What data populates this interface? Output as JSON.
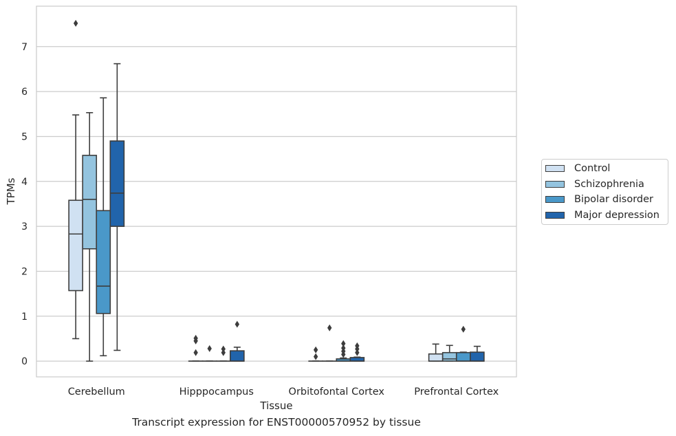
{
  "chart_data": {
    "type": "box",
    "xlabel": "Tissue",
    "ylabel": "TPMs",
    "caption": "Transcript expression for ENST00000570952 by tissue",
    "categories": [
      "Cerebellum",
      "Hipppocampus",
      "Orbitofontal Cortex",
      "Prefrontal Cortex"
    ],
    "ylim": [
      -0.35,
      7.9
    ],
    "yticks": [
      "0",
      "1",
      "2",
      "3",
      "4",
      "5",
      "6",
      "7"
    ],
    "grid": "horizontal",
    "legend_position": "right",
    "colors": [
      "#d0e1f2",
      "#94c4df",
      "#4a98c9",
      "#2164ab"
    ],
    "series": [
      {
        "name": "Control",
        "boxes": [
          {
            "whisker_low": 0.5,
            "q1": 1.57,
            "median": 2.83,
            "q3": 3.58,
            "whisker_high": 5.48,
            "outliers": [
              7.52
            ]
          },
          {
            "whisker_low": 0.0,
            "q1": 0.0,
            "median": 0.0,
            "q3": 0.0,
            "whisker_high": 0.0,
            "outliers": [
              0.19,
              0.45,
              0.51
            ]
          },
          {
            "whisker_low": 0.0,
            "q1": 0.0,
            "median": 0.0,
            "q3": 0.0,
            "whisker_high": 0.0,
            "outliers": [
              0.1,
              0.25
            ]
          },
          {
            "whisker_low": 0.0,
            "q1": 0.0,
            "median": 0.0,
            "q3": 0.16,
            "whisker_high": 0.38,
            "outliers": []
          }
        ]
      },
      {
        "name": "Schizophrenia",
        "boxes": [
          {
            "whisker_low": 0.0,
            "q1": 2.5,
            "median": 3.6,
            "q3": 4.58,
            "whisker_high": 5.53,
            "outliers": []
          },
          {
            "whisker_low": 0.0,
            "q1": 0.0,
            "median": 0.0,
            "q3": 0.0,
            "whisker_high": 0.0,
            "outliers": [
              0.28
            ]
          },
          {
            "whisker_low": 0.0,
            "q1": 0.0,
            "median": 0.0,
            "q3": 0.0,
            "whisker_high": 0.0,
            "outliers": [
              0.74
            ]
          },
          {
            "whisker_low": 0.0,
            "q1": 0.0,
            "median": 0.05,
            "q3": 0.19,
            "whisker_high": 0.35,
            "outliers": []
          }
        ]
      },
      {
        "name": "Bipolar disorder",
        "boxes": [
          {
            "whisker_low": 0.12,
            "q1": 1.06,
            "median": 1.67,
            "q3": 3.35,
            "whisker_high": 5.86,
            "outliers": []
          },
          {
            "whisker_low": 0.0,
            "q1": 0.0,
            "median": 0.0,
            "q3": 0.0,
            "whisker_high": 0.0,
            "outliers": [
              0.19,
              0.27
            ]
          },
          {
            "whisker_low": 0.0,
            "q1": 0.0,
            "median": 0.0,
            "q3": 0.05,
            "whisker_high": 0.07,
            "outliers": [
              0.15,
              0.22,
              0.29,
              0.39
            ]
          },
          {
            "whisker_low": 0.0,
            "q1": 0.0,
            "median": 0.0,
            "q3": 0.19,
            "whisker_high": 0.2,
            "outliers": [
              0.71
            ]
          }
        ]
      },
      {
        "name": "Major depression",
        "boxes": [
          {
            "whisker_low": 0.24,
            "q1": 3.0,
            "median": 3.74,
            "q3": 4.9,
            "whisker_high": 6.62,
            "outliers": []
          },
          {
            "whisker_low": 0.0,
            "q1": 0.0,
            "median": 0.0,
            "q3": 0.23,
            "whisker_high": 0.31,
            "outliers": [
              0.82
            ]
          },
          {
            "whisker_low": 0.0,
            "q1": 0.0,
            "median": 0.0,
            "q3": 0.08,
            "whisker_high": 0.09,
            "outliers": [
              0.19,
              0.27,
              0.34
            ]
          },
          {
            "whisker_low": 0.0,
            "q1": 0.0,
            "median": 0.0,
            "q3": 0.2,
            "whisker_high": 0.33,
            "outliers": []
          }
        ]
      }
    ]
  }
}
